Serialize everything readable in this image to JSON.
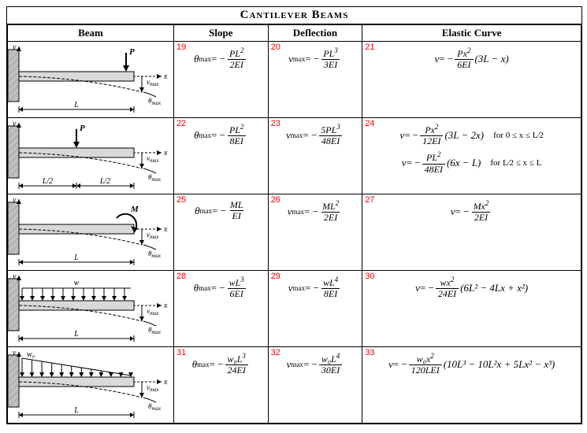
{
  "title": "Cantilever Beams",
  "headers": {
    "beam": "Beam",
    "slope": "Slope",
    "defl": "Deflection",
    "curve": "Elastic Curve"
  },
  "rows": [
    {
      "nums": [
        "19",
        "20",
        "21"
      ],
      "slope": {
        "lhs": "θ",
        "sub": "max",
        "neg": true,
        "num": "PL",
        "num_sup": "2",
        "den": "2EI"
      },
      "defl": {
        "lhs": "v",
        "sub": "max",
        "neg": true,
        "num": "PL",
        "num_sup": "3",
        "den": "3EI"
      },
      "curve": [
        {
          "lhs": "v",
          "neg": true,
          "num": "Px",
          "num_sup": "2",
          "den": "6EI",
          "tail": "(3L − x)"
        }
      ]
    },
    {
      "nums": [
        "22",
        "23",
        "24"
      ],
      "slope": {
        "lhs": "θ",
        "sub": "max",
        "neg": true,
        "num": "PL",
        "num_sup": "2",
        "den": "8EI"
      },
      "defl": {
        "lhs": "v",
        "sub": "max",
        "neg": true,
        "num": "5PL",
        "num_sup": "3",
        "den": "48EI"
      },
      "curve": [
        {
          "lhs": "v",
          "neg": true,
          "num": "Px",
          "num_sup": "2",
          "den": "12EI",
          "tail": "(3L − 2x)",
          "cond": "for 0 ≤ x ≤ L⁄2"
        },
        {
          "lhs": "v",
          "neg": true,
          "num": "PL",
          "num_sup": "2",
          "den": "48EI",
          "tail": "(6x − L)",
          "cond": "for L⁄2 ≤ x ≤ L"
        }
      ]
    },
    {
      "nums": [
        "25",
        "26",
        "27"
      ],
      "slope": {
        "lhs": "θ",
        "sub": "max",
        "neg": true,
        "num": "ML",
        "den": "EI"
      },
      "defl": {
        "lhs": "v",
        "sub": "max",
        "neg": true,
        "num": "ML",
        "num_sup": "2",
        "den": "2EI"
      },
      "curve": [
        {
          "lhs": "v",
          "neg": true,
          "num": "Mx",
          "num_sup": "2",
          "den": "2EI"
        }
      ]
    },
    {
      "nums": [
        "28",
        "29",
        "30"
      ],
      "slope": {
        "lhs": "θ",
        "sub": "max",
        "neg": true,
        "num": "wL",
        "num_sup": "3",
        "den": "6EI"
      },
      "defl": {
        "lhs": "v",
        "sub": "max",
        "neg": true,
        "num": "wL",
        "num_sup": "4",
        "den": "8EI"
      },
      "curve": [
        {
          "lhs": "v",
          "neg": true,
          "num": "wx",
          "num_sup": "2",
          "den": "24EI",
          "tail": "(6L² − 4Lx + x²)"
        }
      ]
    },
    {
      "nums": [
        "31",
        "32",
        "33"
      ],
      "slope": {
        "lhs": "θ",
        "sub": "max",
        "neg": true,
        "num": "w₀L",
        "num_sup": "3",
        "den": "24EI"
      },
      "defl": {
        "lhs": "v",
        "sub": "max",
        "neg": true,
        "num": "w₀L",
        "num_sup": "4",
        "den": "30EI"
      },
      "curve": [
        {
          "lhs": "v",
          "neg": true,
          "num": "w₀x",
          "num_sup": "2",
          "den": "120LEI",
          "tail": "(10L³ − 10L²x + 5Lx² − x³)"
        }
      ]
    }
  ],
  "beam_labels": {
    "P": "P",
    "M": "M",
    "w": "w",
    "w0": "w₀",
    "L": "L",
    "Lhalf": "L/2",
    "x": "x",
    "v": "v",
    "vmax": "v",
    "vmax_sub": "max",
    "thmax": "θ",
    "thmax_sub": "max"
  },
  "colors": {
    "numcolor": "#ff0000",
    "beamfill": "#d9d9d9",
    "wall": "#bfbfbf"
  }
}
